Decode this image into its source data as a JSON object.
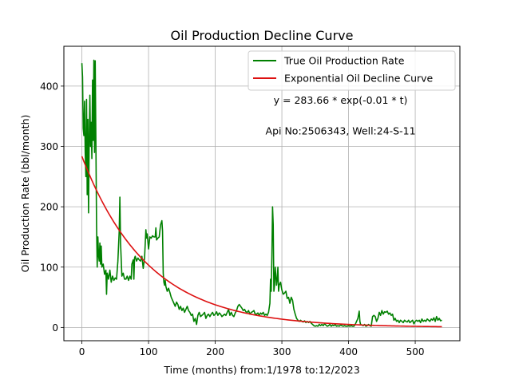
{
  "chart_data": {
    "type": "line",
    "title": "Oil Production Decline Curve",
    "xlabel": "Time (months) from:1/1978 to:12/2023",
    "ylabel": "Oil Production Rate (bbl/month)",
    "xlim": [
      -27,
      567
    ],
    "ylim": [
      -22,
      466
    ],
    "xticks": [
      0,
      100,
      200,
      300,
      400,
      500
    ],
    "yticks": [
      0,
      100,
      200,
      300,
      400
    ],
    "grid": true,
    "legend_position": "top-right",
    "annotations": [
      {
        "text": "y = 283.66 * exp(-0.01 * t)",
        "x": 388,
        "y": 371
      },
      {
        "text": "Api No:2506343, Well:24-S-11",
        "x": 388,
        "y": 320
      }
    ],
    "series": [
      {
        "name": "True Oil Production Rate",
        "color": "#008000",
        "points": [
          [
            0,
            438
          ],
          [
            1,
            415
          ],
          [
            2,
            330
          ],
          [
            3,
            318
          ],
          [
            4,
            375
          ],
          [
            5,
            290
          ],
          [
            6,
            250
          ],
          [
            7,
            378
          ],
          [
            8,
            220
          ],
          [
            9,
            345
          ],
          [
            10,
            190
          ],
          [
            11,
            310
          ],
          [
            12,
            385
          ],
          [
            13,
            300
          ],
          [
            14,
            340
          ],
          [
            15,
            280
          ],
          [
            16,
            410
          ],
          [
            17,
            310
          ],
          [
            18,
            443
          ],
          [
            19,
            290
          ],
          [
            20,
            442
          ],
          [
            21,
            310
          ],
          [
            22,
            170
          ],
          [
            23,
            100
          ],
          [
            24,
            150
          ],
          [
            25,
            120
          ],
          [
            26,
            110
          ],
          [
            27,
            140
          ],
          [
            28,
            105
          ],
          [
            29,
            135
          ],
          [
            30,
            100
          ],
          [
            32,
            105
          ],
          [
            34,
            88
          ],
          [
            36,
            95
          ],
          [
            37,
            55
          ],
          [
            38,
            90
          ],
          [
            40,
            80
          ],
          [
            42,
            95
          ],
          [
            44,
            75
          ],
          [
            46,
            85
          ],
          [
            48,
            78
          ],
          [
            50,
            82
          ],
          [
            52,
            80
          ],
          [
            54,
            110
          ],
          [
            56,
            160
          ],
          [
            57,
            216
          ],
          [
            58,
            140
          ],
          [
            60,
            85
          ],
          [
            62,
            90
          ],
          [
            64,
            80
          ],
          [
            66,
            80
          ],
          [
            68,
            85
          ],
          [
            70,
            78
          ],
          [
            72,
            85
          ],
          [
            74,
            80
          ],
          [
            75,
            105
          ],
          [
            77,
            112
          ],
          [
            78,
            80
          ],
          [
            79,
            115
          ],
          [
            80,
            118
          ],
          [
            82,
            110
          ],
          [
            84,
            115
          ],
          [
            86,
            112
          ],
          [
            88,
            110
          ],
          [
            90,
            118
          ],
          [
            92,
            98
          ],
          [
            94,
            115
          ],
          [
            96,
            162
          ],
          [
            97,
            148
          ],
          [
            98,
            155
          ],
          [
            100,
            130
          ],
          [
            102,
            150
          ],
          [
            104,
            148
          ],
          [
            106,
            152
          ],
          [
            108,
            150
          ],
          [
            110,
            150
          ],
          [
            111,
            165
          ],
          [
            112,
            145
          ],
          [
            114,
            148
          ],
          [
            116,
            150
          ],
          [
            118,
            170
          ],
          [
            120,
            177
          ],
          [
            121,
            160
          ],
          [
            122,
            90
          ],
          [
            123,
            75
          ],
          [
            124,
            70
          ],
          [
            125,
            78
          ],
          [
            126,
            68
          ],
          [
            128,
            60
          ],
          [
            130,
            65
          ],
          [
            132,
            58
          ],
          [
            134,
            50
          ],
          [
            136,
            45
          ],
          [
            138,
            40
          ],
          [
            140,
            35
          ],
          [
            142,
            42
          ],
          [
            144,
            38
          ],
          [
            146,
            30
          ],
          [
            148,
            35
          ],
          [
            150,
            28
          ],
          [
            152,
            32
          ],
          [
            154,
            25
          ],
          [
            156,
            30
          ],
          [
            158,
            35
          ],
          [
            160,
            28
          ],
          [
            162,
            25
          ],
          [
            164,
            20
          ],
          [
            166,
            22
          ],
          [
            168,
            10
          ],
          [
            170,
            15
          ],
          [
            172,
            5
          ],
          [
            174,
            20
          ],
          [
            176,
            25
          ],
          [
            178,
            18
          ],
          [
            180,
            20
          ],
          [
            182,
            22
          ],
          [
            184,
            25
          ],
          [
            186,
            15
          ],
          [
            188,
            20
          ],
          [
            190,
            22
          ],
          [
            192,
            18
          ],
          [
            194,
            22
          ],
          [
            196,
            25
          ],
          [
            198,
            20
          ],
          [
            200,
            22
          ],
          [
            202,
            26
          ],
          [
            204,
            20
          ],
          [
            206,
            24
          ],
          [
            208,
            22
          ],
          [
            210,
            18
          ],
          [
            212,
            20
          ],
          [
            214,
            22
          ],
          [
            216,
            20
          ],
          [
            218,
            25
          ],
          [
            220,
            30
          ],
          [
            222,
            20
          ],
          [
            224,
            25
          ],
          [
            226,
            20
          ],
          [
            228,
            18
          ],
          [
            230,
            24
          ],
          [
            232,
            28
          ],
          [
            234,
            35
          ],
          [
            236,
            38
          ],
          [
            238,
            35
          ],
          [
            240,
            32
          ],
          [
            242,
            28
          ],
          [
            244,
            30
          ],
          [
            246,
            26
          ],
          [
            248,
            25
          ],
          [
            250,
            28
          ],
          [
            252,
            22
          ],
          [
            254,
            25
          ],
          [
            256,
            26
          ],
          [
            258,
            28
          ],
          [
            260,
            22
          ],
          [
            262,
            22
          ],
          [
            264,
            24
          ],
          [
            266,
            20
          ],
          [
            268,
            24
          ],
          [
            270,
            22
          ],
          [
            272,
            25
          ],
          [
            274,
            20
          ],
          [
            276,
            22
          ],
          [
            278,
            20
          ],
          [
            280,
            25
          ],
          [
            282,
            40
          ],
          [
            283,
            80
          ],
          [
            284,
            60
          ],
          [
            285,
            120
          ],
          [
            286,
            200
          ],
          [
            287,
            170
          ],
          [
            288,
            60
          ],
          [
            289,
            70
          ],
          [
            290,
            100
          ],
          [
            291,
            85
          ],
          [
            292,
            70
          ],
          [
            293,
            80
          ],
          [
            294,
            100
          ],
          [
            295,
            60
          ],
          [
            296,
            70
          ],
          [
            298,
            75
          ],
          [
            300,
            62
          ],
          [
            302,
            55
          ],
          [
            304,
            57
          ],
          [
            306,
            60
          ],
          [
            308,
            48
          ],
          [
            310,
            50
          ],
          [
            312,
            40
          ],
          [
            314,
            50
          ],
          [
            316,
            45
          ],
          [
            318,
            30
          ],
          [
            320,
            22
          ],
          [
            322,
            15
          ],
          [
            324,
            12
          ],
          [
            326,
            10
          ],
          [
            328,
            12
          ],
          [
            330,
            10
          ],
          [
            332,
            9
          ],
          [
            334,
            11
          ],
          [
            336,
            8
          ],
          [
            338,
            10
          ],
          [
            340,
            8
          ],
          [
            342,
            10
          ],
          [
            344,
            7
          ],
          [
            346,
            5
          ],
          [
            348,
            3
          ],
          [
            350,
            2
          ],
          [
            352,
            3
          ],
          [
            354,
            2
          ],
          [
            356,
            5
          ],
          [
            358,
            3
          ],
          [
            360,
            5
          ],
          [
            362,
            3
          ],
          [
            364,
            6
          ],
          [
            366,
            4
          ],
          [
            368,
            2
          ],
          [
            370,
            3
          ],
          [
            372,
            5
          ],
          [
            374,
            2
          ],
          [
            376,
            4
          ],
          [
            378,
            3
          ],
          [
            380,
            5
          ],
          [
            382,
            2
          ],
          [
            384,
            3
          ],
          [
            386,
            2
          ],
          [
            388,
            4
          ],
          [
            390,
            3
          ],
          [
            392,
            2
          ],
          [
            394,
            3
          ],
          [
            396,
            2
          ],
          [
            398,
            2
          ],
          [
            400,
            3
          ],
          [
            402,
            2
          ],
          [
            404,
            3
          ],
          [
            406,
            2
          ],
          [
            408,
            2
          ],
          [
            410,
            5
          ],
          [
            412,
            10
          ],
          [
            414,
            15
          ],
          [
            416,
            27
          ],
          [
            417,
            10
          ],
          [
            418,
            5
          ],
          [
            420,
            4
          ],
          [
            422,
            3
          ],
          [
            424,
            5
          ],
          [
            426,
            2
          ],
          [
            428,
            3
          ],
          [
            430,
            5
          ],
          [
            432,
            3
          ],
          [
            434,
            2
          ],
          [
            436,
            18
          ],
          [
            438,
            20
          ],
          [
            440,
            18
          ],
          [
            442,
            10
          ],
          [
            444,
            15
          ],
          [
            446,
            25
          ],
          [
            448,
            20
          ],
          [
            450,
            28
          ],
          [
            452,
            22
          ],
          [
            454,
            26
          ],
          [
            456,
            25
          ],
          [
            458,
            27
          ],
          [
            460,
            22
          ],
          [
            462,
            24
          ],
          [
            464,
            20
          ],
          [
            466,
            22
          ],
          [
            468,
            12
          ],
          [
            470,
            15
          ],
          [
            472,
            10
          ],
          [
            474,
            12
          ],
          [
            476,
            8
          ],
          [
            478,
            12
          ],
          [
            480,
            10
          ],
          [
            482,
            8
          ],
          [
            484,
            12
          ],
          [
            486,
            10
          ],
          [
            488,
            9
          ],
          [
            490,
            12
          ],
          [
            492,
            8
          ],
          [
            494,
            10
          ],
          [
            496,
            12
          ],
          [
            498,
            6
          ],
          [
            500,
            10
          ],
          [
            502,
            12
          ],
          [
            504,
            10
          ],
          [
            506,
            12
          ],
          [
            508,
            8
          ],
          [
            510,
            14
          ],
          [
            512,
            10
          ],
          [
            514,
            12
          ],
          [
            516,
            10
          ],
          [
            518,
            14
          ],
          [
            520,
            12
          ],
          [
            522,
            10
          ],
          [
            524,
            14
          ],
          [
            526,
            12
          ],
          [
            528,
            16
          ],
          [
            530,
            10
          ],
          [
            532,
            18
          ],
          [
            534,
            12
          ],
          [
            536,
            15
          ],
          [
            538,
            11
          ],
          [
            540,
            12
          ]
        ]
      },
      {
        "name": "Exponential Oil Decline Curve",
        "color": "#dd1111",
        "model": {
          "a": 283.66,
          "k": 0.0101,
          "t_start": 0,
          "t_end": 540
        }
      }
    ]
  }
}
